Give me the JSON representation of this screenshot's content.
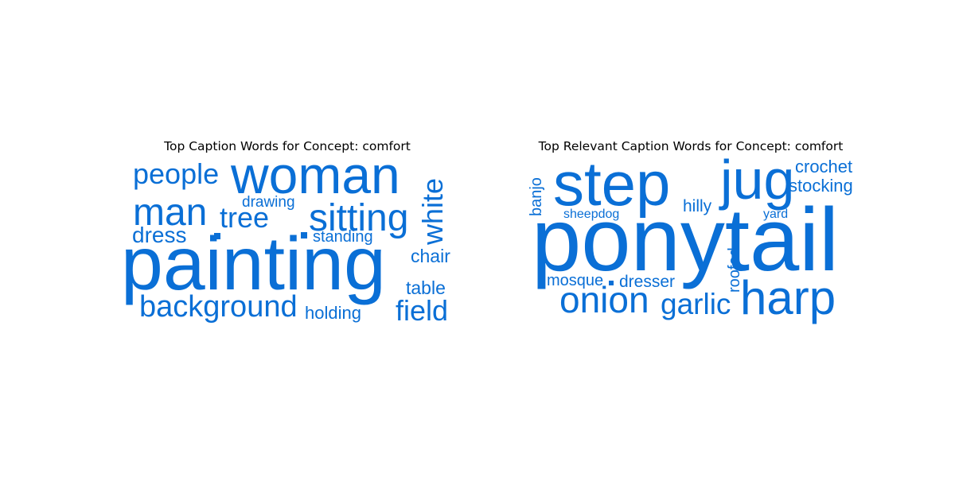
{
  "colors": {
    "word": "#0a6fd6",
    "background": "#ffffff",
    "title": "#000000"
  },
  "chart_data": [
    {
      "type": "wordcloud",
      "title": "Top Caption Words for Concept: comfort",
      "words": [
        {
          "text": "painting",
          "weight": 1.0
        },
        {
          "text": "woman",
          "weight": 0.75
        },
        {
          "text": "sitting",
          "weight": 0.5
        },
        {
          "text": "background",
          "weight": 0.43
        },
        {
          "text": "man",
          "weight": 0.55
        },
        {
          "text": "people",
          "weight": 0.4
        },
        {
          "text": "tree",
          "weight": 0.4
        },
        {
          "text": "white",
          "weight": 0.4
        },
        {
          "text": "field",
          "weight": 0.4
        },
        {
          "text": "dress",
          "weight": 0.32
        },
        {
          "text": "chair",
          "weight": 0.27
        },
        {
          "text": "table",
          "weight": 0.27
        },
        {
          "text": "drawing",
          "weight": 0.22
        },
        {
          "text": "standing",
          "weight": 0.23
        },
        {
          "text": "holding",
          "weight": 0.25
        }
      ]
    },
    {
      "type": "wordcloud",
      "title": "Top Relevant Caption Words for Concept: comfort",
      "words": [
        {
          "text": "ponytail",
          "weight": 1.0
        },
        {
          "text": "step",
          "weight": 0.7
        },
        {
          "text": "jug",
          "weight": 0.62
        },
        {
          "text": "harp",
          "weight": 0.55
        },
        {
          "text": "onion",
          "weight": 0.45
        },
        {
          "text": "garlic",
          "weight": 0.37
        },
        {
          "text": "crochet",
          "weight": 0.22
        },
        {
          "text": "stocking",
          "weight": 0.22
        },
        {
          "text": "hilly",
          "weight": 0.22
        },
        {
          "text": "dresser",
          "weight": 0.22
        },
        {
          "text": "mosque",
          "weight": 0.2
        },
        {
          "text": "banjo",
          "weight": 0.2
        },
        {
          "text": "roofed",
          "weight": 0.2
        },
        {
          "text": "sheepdog",
          "weight": 0.17
        },
        {
          "text": "yard",
          "weight": 0.17
        }
      ]
    }
  ]
}
